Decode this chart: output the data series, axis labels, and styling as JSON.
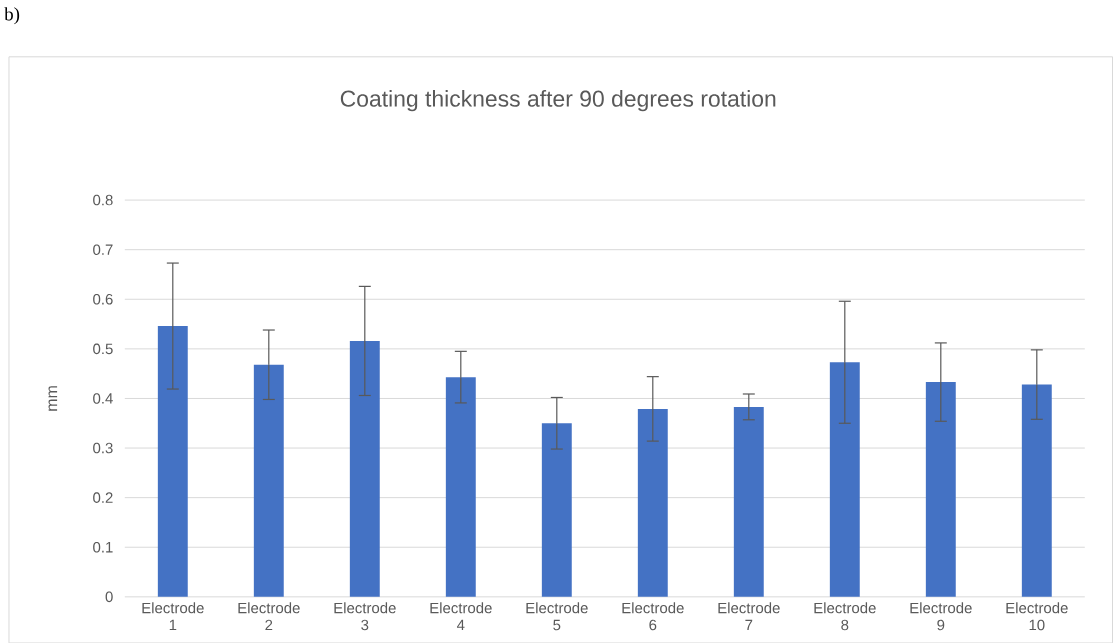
{
  "chart_data": {
    "type": "bar",
    "title": "Coating thickness after 90 degrees rotation",
    "ylabel": "mm",
    "categories": [
      "Electrode 1",
      "Electrode 2",
      "Electrode 3",
      "Electrode 4",
      "Electrode 5",
      "Electrode 6",
      "Electrode 7",
      "Electrode 8",
      "Electrode 9",
      "Electrode 10"
    ],
    "values": [
      0.546,
      0.468,
      0.516,
      0.443,
      0.35,
      0.379,
      0.383,
      0.473,
      0.433,
      0.428
    ],
    "errors": [
      0.127,
      0.07,
      0.11,
      0.052,
      0.052,
      0.065,
      0.026,
      0.123,
      0.079,
      0.07
    ],
    "color": "#4472c4",
    "ylim": [
      0,
      0.8
    ],
    "yticks": [
      0,
      0.1,
      0.2,
      0.3,
      0.4,
      0.5,
      0.6,
      0.7,
      0.8
    ],
    "grid": "y",
    "annotations": [
      "b)"
    ]
  }
}
